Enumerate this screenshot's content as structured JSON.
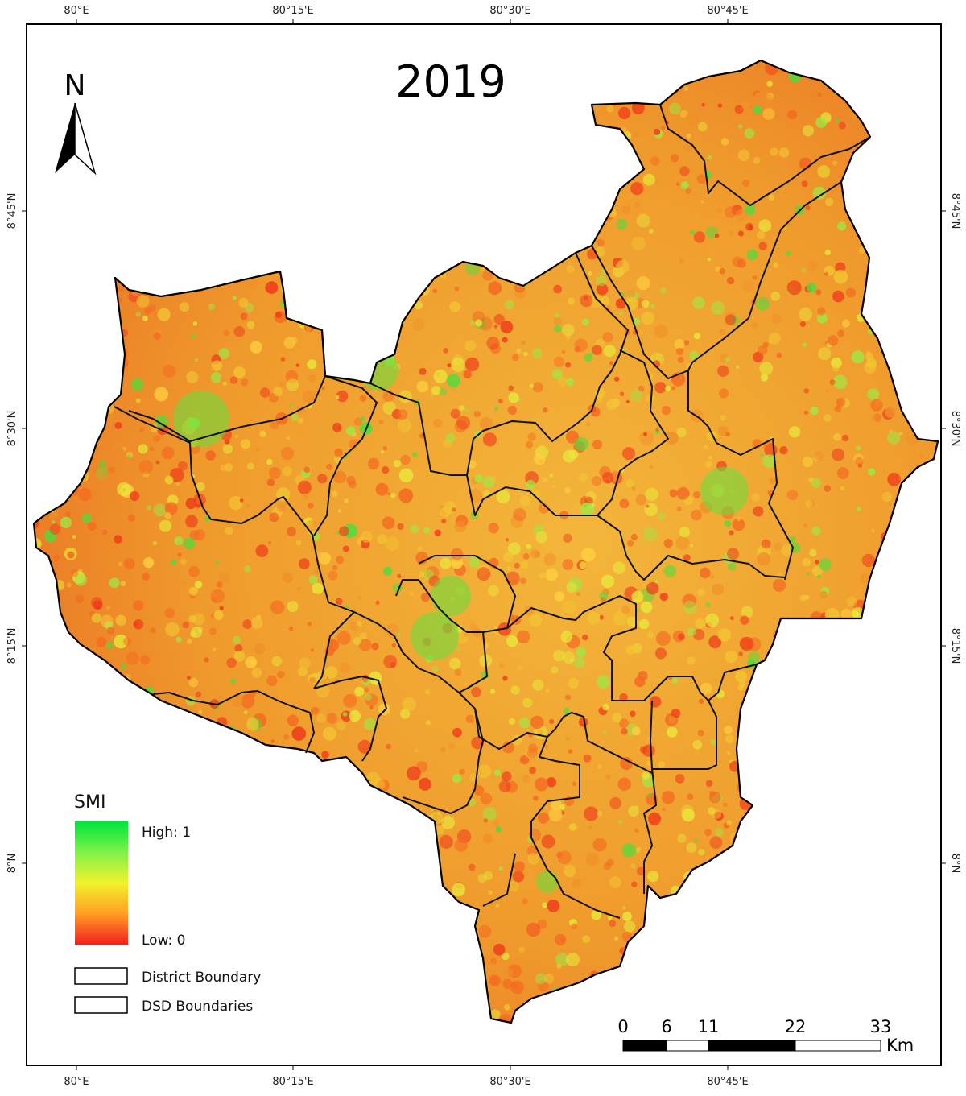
{
  "map": {
    "title": "2019",
    "north_label": "N",
    "graticule": {
      "top_ticks": [
        "80°E",
        "80°15'E",
        "80°30'E",
        "80°45'E"
      ],
      "bottom_ticks": [
        "80°E",
        "80°15'E",
        "80°30'E",
        "80°45'E"
      ],
      "left_ticks": [
        "8°45'N",
        "8°30'N",
        "8°15'N",
        "8°N"
      ],
      "right_ticks": [
        "8°45'N",
        "8°30'N",
        "8°15'N",
        "8°N"
      ]
    }
  },
  "legend": {
    "title": "SMI",
    "high_label": "High: 1",
    "low_label": "Low: 0",
    "gradient_colors": [
      "#00e43c",
      "#7ef24a",
      "#f2f22c",
      "#ff9e22",
      "#f41e1e"
    ],
    "items": [
      {
        "label": "District Boundary"
      },
      {
        "label": "DSD Boundaries"
      }
    ]
  },
  "scale_bar": {
    "ticks": [
      "0",
      "6",
      "11",
      "22",
      "33"
    ],
    "unit": "Km"
  },
  "colors": {
    "low": "#f04a1c",
    "mid": "#f0a028",
    "high": "#38e03c",
    "boundary": "#111111"
  }
}
